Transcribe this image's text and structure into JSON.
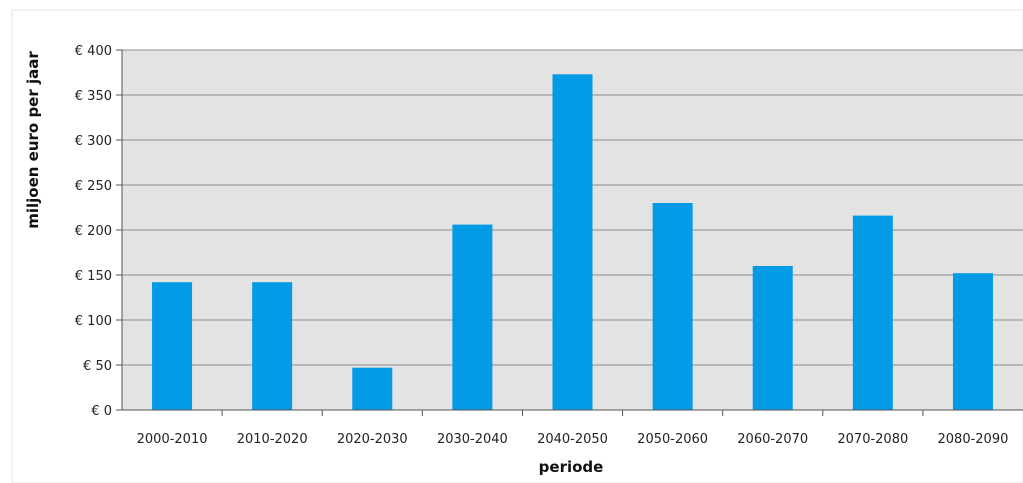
{
  "chart_data": {
    "type": "bar",
    "xlabel": "periode",
    "ylabel": "miljoen euro per jaar",
    "categories": [
      "2000-2010",
      "2010-2020",
      "2020-2030",
      "2030-2040",
      "2040-2050",
      "2050-2060",
      "2060-2070",
      "2070-2080",
      "2080-2090"
    ],
    "values": [
      142,
      142,
      47,
      206,
      373,
      230,
      160,
      216,
      152
    ],
    "ylim": [
      0,
      400
    ],
    "yticks": [
      0,
      50,
      100,
      150,
      200,
      250,
      300,
      350,
      400
    ],
    "ytick_labels": [
      "€ 0",
      "€ 50",
      "€ 100",
      "€ 150",
      "€ 200",
      "€ 250",
      "€ 300",
      "€ 350",
      "€ 400"
    ],
    "grid": true,
    "colors": {
      "bar": "#039be5",
      "plot_background": "#e3e3e3",
      "grid": "#8c8c8c"
    }
  }
}
